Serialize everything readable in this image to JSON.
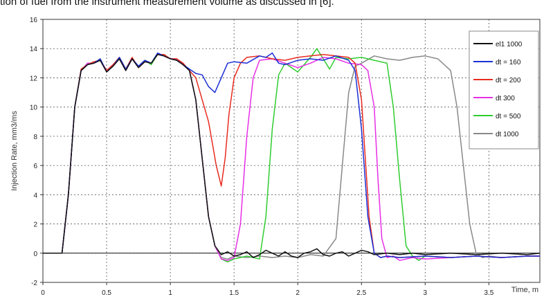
{
  "caption": "tion of fuel from the instrument measurement volume as discussed in [6].",
  "chart_data": {
    "type": "line",
    "xlabel": "Time, m",
    "ylabel": "Injection Rate, mm3/ms",
    "xlim": [
      0,
      3.9
    ],
    "ylim": [
      -2,
      16
    ],
    "xticks": [
      "0",
      "0.5",
      "1",
      "1.5",
      "2",
      "2.5",
      "3",
      "3.5"
    ],
    "yticks": [
      "-2",
      "0",
      "2",
      "4",
      "6",
      "8",
      "10",
      "12",
      "14",
      "16"
    ],
    "grid": true,
    "legend_position": "right",
    "series": [
      {
        "name": "el1   1000",
        "color": "#111111",
        "x": [
          0,
          0.15,
          0.2,
          0.25,
          0.3,
          0.35,
          0.4,
          0.45,
          0.5,
          0.55,
          0.6,
          0.65,
          0.7,
          0.75,
          0.8,
          0.85,
          0.9,
          0.95,
          1.0,
          1.05,
          1.1,
          1.15,
          1.2,
          1.25,
          1.3,
          1.35,
          1.4,
          1.45,
          1.5,
          1.55,
          1.6,
          1.65,
          1.7,
          1.75,
          1.8,
          1.85,
          1.9,
          1.95,
          2.0,
          2.05,
          2.1,
          2.15,
          2.2,
          2.25,
          2.3,
          2.35,
          2.4,
          2.45,
          2.5,
          2.55,
          2.6,
          2.7,
          2.8,
          2.9,
          3.0,
          3.2,
          3.4,
          3.6,
          3.8,
          3.9
        ],
        "y": [
          0,
          0,
          4,
          10,
          12.5,
          12.9,
          13.0,
          13.2,
          12.4,
          12.8,
          13.3,
          12.5,
          13.3,
          12.7,
          13.1,
          13.0,
          13.6,
          13.5,
          13.3,
          13.2,
          12.9,
          12.5,
          10.5,
          6.5,
          2.5,
          0.5,
          -0.1,
          0.1,
          -0.2,
          -0.1,
          0.1,
          -0.3,
          -0.1,
          0.2,
          0.0,
          -0.2,
          0.1,
          -0.2,
          -0.3,
          0.0,
          0.1,
          0.3,
          -0.1,
          -0.2,
          0.0,
          0.1,
          -0.2,
          0.0,
          0.2,
          0.1,
          -0.1,
          0.0,
          -0.1,
          0.0,
          -0.1,
          0.0,
          -0.1,
          0.0,
          -0.1,
          0.0
        ]
      },
      {
        "name": "dt = 160",
        "color": "#1a2fd6",
        "x": [
          0,
          0.15,
          0.2,
          0.25,
          0.3,
          0.35,
          0.4,
          0.45,
          0.5,
          0.55,
          0.6,
          0.65,
          0.7,
          0.75,
          0.8,
          0.85,
          0.9,
          0.95,
          1.0,
          1.05,
          1.1,
          1.15,
          1.2,
          1.25,
          1.3,
          1.35,
          1.4,
          1.45,
          1.5,
          1.6,
          1.7,
          1.75,
          1.8,
          1.85,
          1.9,
          2.0,
          2.1,
          2.2,
          2.3,
          2.4,
          2.45,
          2.5,
          2.55,
          2.6,
          2.65,
          2.7,
          2.8,
          3.0,
          3.2,
          3.4,
          3.6,
          3.8,
          3.9
        ],
        "y": [
          0,
          0,
          4,
          10,
          12.5,
          12.9,
          13.0,
          13.3,
          12.4,
          12.8,
          13.4,
          12.6,
          13.3,
          12.8,
          13.2,
          13.0,
          13.7,
          13.5,
          13.3,
          13.2,
          12.9,
          12.6,
          12.3,
          12.2,
          11.4,
          11.0,
          12.0,
          13.0,
          13.1,
          13.0,
          13.5,
          13.4,
          13.7,
          13.0,
          12.9,
          13.2,
          13.3,
          13.2,
          13.5,
          13.2,
          12.5,
          8.5,
          2.5,
          0.0,
          -0.3,
          -0.2,
          -0.3,
          -0.2,
          -0.3,
          -0.2,
          -0.3,
          -0.2,
          -0.2
        ]
      },
      {
        "name": "dt = 200",
        "color": "#e82a1e",
        "x": [
          0,
          0.15,
          0.2,
          0.25,
          0.3,
          0.35,
          0.4,
          0.45,
          0.5,
          0.55,
          0.6,
          0.65,
          0.7,
          0.75,
          0.8,
          0.85,
          0.9,
          0.95,
          1.0,
          1.05,
          1.1,
          1.15,
          1.2,
          1.25,
          1.3,
          1.33,
          1.36,
          1.4,
          1.43,
          1.46,
          1.5,
          1.55,
          1.6,
          1.7,
          1.8,
          1.9,
          2.0,
          2.1,
          2.2,
          2.3,
          2.4,
          2.45,
          2.5,
          2.53,
          2.56,
          2.6,
          2.65,
          2.7,
          2.8,
          3.0,
          3.2,
          3.4,
          3.6,
          3.8,
          3.9
        ],
        "y": [
          0,
          0,
          4,
          10,
          12.6,
          12.9,
          13.1,
          13.2,
          12.5,
          12.9,
          13.4,
          12.6,
          13.4,
          12.7,
          13.1,
          13.0,
          13.6,
          13.6,
          13.3,
          13.3,
          13.0,
          12.5,
          12.0,
          10.5,
          9.0,
          7.5,
          6.0,
          4.6,
          6.5,
          9.5,
          12.0,
          13.0,
          13.4,
          13.5,
          13.3,
          13.2,
          13.4,
          13.5,
          13.6,
          13.5,
          13.4,
          13.0,
          10.5,
          6.5,
          2.5,
          0.0,
          -0.3,
          -0.2,
          -0.3,
          -0.2,
          -0.3,
          -0.2,
          -0.3,
          -0.2,
          -0.2
        ]
      },
      {
        "name": "dt   300",
        "color": "#e62ee6",
        "x": [
          0,
          0.15,
          0.2,
          0.25,
          0.3,
          0.35,
          0.4,
          0.45,
          0.5,
          0.55,
          0.6,
          0.65,
          0.7,
          0.75,
          0.8,
          0.85,
          0.9,
          0.95,
          1.0,
          1.05,
          1.1,
          1.15,
          1.2,
          1.25,
          1.3,
          1.35,
          1.4,
          1.45,
          1.5,
          1.55,
          1.6,
          1.65,
          1.7,
          1.8,
          1.9,
          2.0,
          2.1,
          2.2,
          2.3,
          2.4,
          2.5,
          2.55,
          2.6,
          2.63,
          2.66,
          2.7,
          2.75,
          2.8,
          2.9,
          3.0,
          3.2,
          3.4,
          3.6,
          3.8,
          3.9
        ],
        "y": [
          0,
          0,
          4,
          10,
          12.5,
          13.0,
          13.0,
          13.2,
          12.5,
          12.9,
          13.3,
          12.5,
          13.3,
          12.8,
          13.1,
          13.0,
          13.6,
          13.5,
          13.3,
          13.3,
          12.9,
          12.5,
          10.5,
          6.5,
          2.5,
          0.5,
          -0.4,
          -0.5,
          -0.3,
          2.0,
          8.0,
          12.0,
          13.2,
          13.3,
          13.0,
          12.7,
          13.0,
          13.4,
          13.3,
          13.0,
          12.9,
          12.5,
          10.0,
          5.0,
          1.0,
          -0.3,
          -0.2,
          -0.5,
          -0.3,
          -0.4,
          -0.3,
          -0.2,
          -0.3,
          -0.2,
          -0.2
        ]
      },
      {
        "name": "dt = 500",
        "color": "#2ecc2e",
        "x": [
          0,
          0.15,
          0.2,
          0.25,
          0.3,
          0.35,
          0.4,
          0.45,
          0.5,
          0.55,
          0.6,
          0.65,
          0.7,
          0.75,
          0.8,
          0.85,
          0.9,
          0.95,
          1.0,
          1.05,
          1.1,
          1.15,
          1.2,
          1.25,
          1.3,
          1.35,
          1.4,
          1.45,
          1.5,
          1.6,
          1.7,
          1.75,
          1.8,
          1.85,
          1.9,
          2.0,
          2.05,
          2.1,
          2.15,
          2.2,
          2.25,
          2.3,
          2.4,
          2.5,
          2.6,
          2.7,
          2.75,
          2.8,
          2.85,
          2.9,
          2.95,
          3.0,
          3.2,
          3.4,
          3.6,
          3.8,
          3.9
        ],
        "y": [
          0,
          0,
          4,
          10,
          12.5,
          12.9,
          13.0,
          13.3,
          12.4,
          12.8,
          13.4,
          12.6,
          13.3,
          12.8,
          13.2,
          12.9,
          13.6,
          13.6,
          13.3,
          13.2,
          12.9,
          12.5,
          10.5,
          6.5,
          2.5,
          0.5,
          -0.4,
          -0.6,
          -0.4,
          -0.2,
          -0.4,
          2.5,
          8.5,
          12.2,
          13.0,
          12.4,
          12.9,
          13.4,
          14.0,
          13.3,
          12.6,
          13.4,
          13.3,
          13.4,
          13.2,
          13.0,
          10.0,
          5.0,
          0.5,
          -0.2,
          -0.5,
          -0.2,
          -0.3,
          -0.2,
          -0.3,
          -0.2,
          -0.2
        ]
      },
      {
        "name": "dt   1000",
        "color": "#888888",
        "x": [
          0,
          0.15,
          0.2,
          0.25,
          0.3,
          0.35,
          0.4,
          0.45,
          0.5,
          0.55,
          0.6,
          0.65,
          0.7,
          0.75,
          0.8,
          0.85,
          0.9,
          0.95,
          1.0,
          1.05,
          1.1,
          1.15,
          1.2,
          1.25,
          1.3,
          1.35,
          1.4,
          1.45,
          1.5,
          1.6,
          1.7,
          1.8,
          1.9,
          2.0,
          2.1,
          2.2,
          2.3,
          2.35,
          2.4,
          2.45,
          2.5,
          2.6,
          2.7,
          2.8,
          2.9,
          3.0,
          3.1,
          3.2,
          3.25,
          3.3,
          3.35,
          3.4,
          3.45,
          3.5,
          3.6,
          3.8,
          3.9
        ],
        "y": [
          0,
          0,
          4,
          10,
          12.5,
          12.9,
          13.0,
          13.2,
          12.4,
          12.8,
          13.3,
          12.5,
          13.3,
          12.7,
          13.1,
          13.0,
          13.6,
          13.5,
          13.3,
          13.2,
          12.9,
          12.5,
          10.5,
          6.5,
          2.5,
          0.5,
          -0.3,
          -0.4,
          -0.2,
          -0.3,
          -0.2,
          -0.3,
          -0.2,
          -0.3,
          -0.1,
          -0.2,
          1.0,
          6.0,
          11.0,
          12.8,
          13.0,
          13.5,
          13.3,
          13.2,
          13.4,
          13.5,
          13.3,
          12.5,
          10.0,
          6.0,
          2.0,
          0.0,
          -0.3,
          -0.2,
          -0.3,
          -0.2,
          -0.2
        ]
      }
    ]
  }
}
